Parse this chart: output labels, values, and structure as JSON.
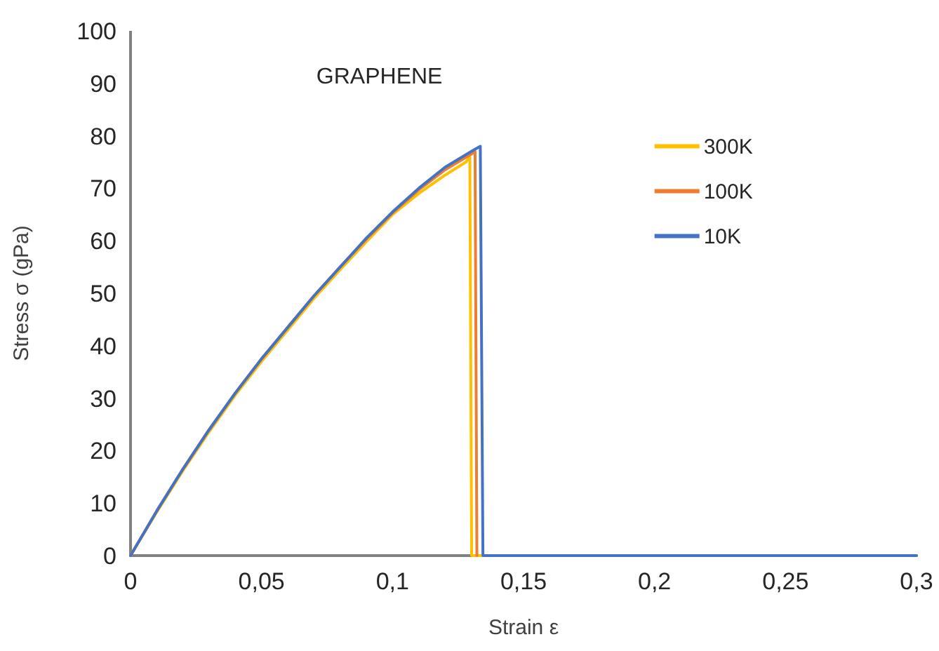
{
  "chart_data": {
    "type": "line",
    "title": "GRAPHENE",
    "xlabel": "Strain ε",
    "ylabel": "Stress σ (gPa)",
    "xlim": [
      0,
      0.3
    ],
    "ylim": [
      0,
      100
    ],
    "xticks": [
      0,
      {
        "value": 0.05,
        "label": "0,05"
      },
      {
        "value": 0.1,
        "label": "0,1"
      },
      {
        "value": 0.15,
        "label": "0,15"
      },
      {
        "value": 0.2,
        "label": "0,2"
      },
      {
        "value": 0.25,
        "label": "0,25"
      },
      {
        "value": 0.3,
        "label": "0,3"
      }
    ],
    "yticks": [
      0,
      10,
      20,
      30,
      40,
      50,
      60,
      70,
      80,
      90,
      100
    ],
    "grid": false,
    "legend": "right",
    "marker": "none",
    "line_style": "solid",
    "series": [
      {
        "name": "300K",
        "color": "#ffc000",
        "x": [
          0,
          0.01,
          0.02,
          0.03,
          0.04,
          0.05,
          0.06,
          0.07,
          0.08,
          0.09,
          0.1,
          0.11,
          0.12,
          0.128,
          0.1295,
          0.1302,
          0.3
        ],
        "values": [
          0,
          8.3,
          16.2,
          23.6,
          30.6,
          37,
          43,
          49,
          54.5,
          59.8,
          65,
          69,
          72.5,
          75,
          76,
          0,
          0
        ]
      },
      {
        "name": "100K",
        "color": "#ed7d31",
        "x": [
          0,
          0.01,
          0.02,
          0.03,
          0.04,
          0.05,
          0.06,
          0.07,
          0.08,
          0.09,
          0.1,
          0.11,
          0.12,
          0.13,
          0.1315,
          0.1322
        ],
        "values": [
          0,
          8.5,
          16.5,
          24,
          31,
          37.5,
          43.5,
          49.5,
          55,
          60.3,
          65.3,
          69.7,
          73.5,
          76.5,
          77,
          0
        ]
      },
      {
        "name": "10K",
        "color": "#4472c4",
        "x": [
          0,
          0.01,
          0.02,
          0.03,
          0.04,
          0.05,
          0.06,
          0.07,
          0.08,
          0.09,
          0.1,
          0.11,
          0.12,
          0.13,
          0.1335,
          0.1345,
          0.3
        ],
        "values": [
          0,
          8.5,
          16.5,
          24,
          31,
          37.5,
          43.5,
          49.5,
          55,
          60.5,
          65.5,
          70,
          74,
          77,
          78,
          0,
          0
        ]
      }
    ]
  }
}
